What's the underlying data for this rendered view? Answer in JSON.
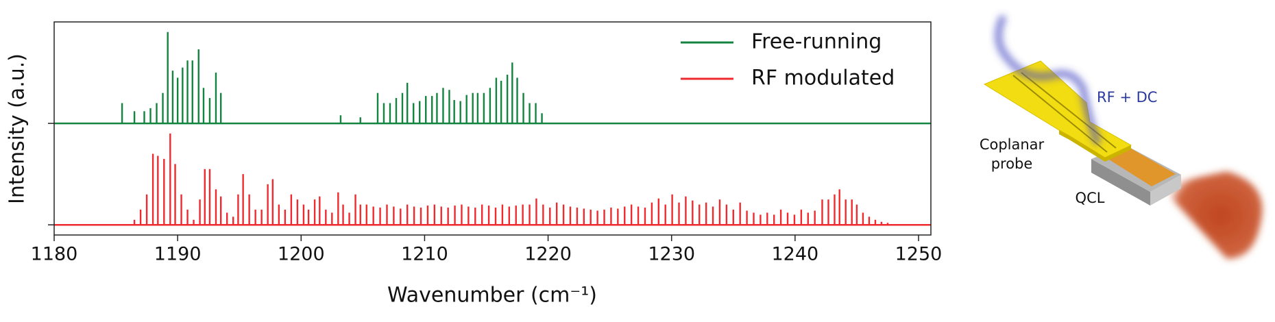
{
  "chart_data": {
    "type": "stem",
    "y_label": "Intensity (a.u.)",
    "x_label": "Wavenumber (cm⁻¹)",
    "xlim": [
      1180,
      1251
    ],
    "xticks": [
      1180,
      1190,
      1200,
      1210,
      1220,
      1230,
      1240,
      1250
    ],
    "ylim": [
      -0.1,
      2.0
    ],
    "yticks": [
      0,
      1
    ],
    "legend": "upper right",
    "series": [
      {
        "name": "Free-running",
        "color": "#12843f",
        "baseline": 1,
        "x": [
          1185.5,
          1186.5,
          1187.3,
          1187.8,
          1188.3,
          1188.8,
          1189.2,
          1189.6,
          1190.0,
          1190.4,
          1190.8,
          1191.2,
          1191.7,
          1192.1,
          1192.6,
          1193.1,
          1193.5,
          1203.2,
          1204.8,
          1206.2,
          1206.7,
          1207.2,
          1207.7,
          1208.2,
          1208.6,
          1209.1,
          1209.6,
          1210.1,
          1210.6,
          1211.0,
          1211.5,
          1212.0,
          1212.4,
          1212.9,
          1213.4,
          1213.9,
          1214.3,
          1214.8,
          1215.3,
          1215.8,
          1216.2,
          1216.7,
          1217.1,
          1217.5,
          1218.0,
          1218.5,
          1219.0,
          1219.5
        ],
        "values": [
          1.2,
          1.12,
          1.12,
          1.15,
          1.2,
          1.3,
          1.9,
          1.52,
          1.45,
          1.55,
          1.62,
          1.62,
          1.73,
          1.35,
          1.25,
          1.5,
          1.3,
          1.08,
          1.06,
          1.3,
          1.2,
          1.2,
          1.25,
          1.3,
          1.4,
          1.2,
          1.22,
          1.27,
          1.27,
          1.3,
          1.35,
          1.33,
          1.23,
          1.22,
          1.28,
          1.3,
          1.3,
          1.3,
          1.35,
          1.45,
          1.42,
          1.48,
          1.6,
          1.45,
          1.3,
          1.2,
          1.2,
          1.1
        ]
      },
      {
        "name": "RF modulated",
        "color": "#ee2a2e",
        "baseline": 0,
        "x": [
          1186.5,
          1187.0,
          1187.5,
          1188.0,
          1188.4,
          1188.9,
          1189.4,
          1189.8,
          1190.3,
          1190.8,
          1191.3,
          1191.8,
          1192.2,
          1192.6,
          1193.1,
          1193.5,
          1194.0,
          1194.5,
          1194.9,
          1195.3,
          1195.8,
          1196.3,
          1196.8,
          1197.3,
          1197.7,
          1198.2,
          1198.7,
          1199.2,
          1199.7,
          1200.2,
          1200.6,
          1201.1,
          1201.5,
          1202.0,
          1202.5,
          1203.0,
          1203.4,
          1203.9,
          1204.4,
          1204.8,
          1205.3,
          1205.85,
          1206.4,
          1206.95,
          1207.5,
          1208.05,
          1208.6,
          1209.15,
          1209.7,
          1210.25,
          1210.8,
          1211.35,
          1211.9,
          1212.45,
          1213.0,
          1213.55,
          1214.1,
          1214.65,
          1215.2,
          1215.75,
          1216.3,
          1216.85,
          1217.4,
          1217.95,
          1218.5,
          1219.05,
          1219.6,
          1220.15,
          1220.7,
          1221.25,
          1221.8,
          1222.35,
          1222.9,
          1223.45,
          1224.0,
          1224.55,
          1225.1,
          1225.65,
          1226.2,
          1226.75,
          1227.3,
          1227.85,
          1228.4,
          1228.95,
          1229.5,
          1230.05,
          1230.6,
          1231.15,
          1231.7,
          1232.25,
          1232.8,
          1233.35,
          1233.9,
          1234.45,
          1235.0,
          1235.55,
          1236.1,
          1236.65,
          1237.2,
          1237.75,
          1238.3,
          1238.85,
          1239.4,
          1239.95,
          1240.5,
          1241.05,
          1241.6,
          1242.2,
          1242.7,
          1243.2,
          1243.6,
          1244.1,
          1244.6,
          1245.0,
          1245.5,
          1246.0,
          1246.5,
          1247.0,
          1247.5
        ],
        "values": [
          0.05,
          0.15,
          0.3,
          0.7,
          0.68,
          0.65,
          0.9,
          0.6,
          0.3,
          0.15,
          0.05,
          0.25,
          0.55,
          0.55,
          0.35,
          0.28,
          0.12,
          0.08,
          0.3,
          0.5,
          0.3,
          0.15,
          0.15,
          0.4,
          0.45,
          0.2,
          0.15,
          0.3,
          0.25,
          0.2,
          0.15,
          0.25,
          0.28,
          0.15,
          0.12,
          0.32,
          0.2,
          0.12,
          0.3,
          0.2,
          0.2,
          0.18,
          0.17,
          0.2,
          0.18,
          0.16,
          0.2,
          0.18,
          0.17,
          0.19,
          0.2,
          0.18,
          0.17,
          0.19,
          0.2,
          0.18,
          0.17,
          0.2,
          0.19,
          0.17,
          0.2,
          0.18,
          0.19,
          0.2,
          0.2,
          0.26,
          0.2,
          0.17,
          0.22,
          0.2,
          0.18,
          0.17,
          0.16,
          0.15,
          0.14,
          0.15,
          0.17,
          0.16,
          0.18,
          0.2,
          0.18,
          0.17,
          0.22,
          0.26,
          0.2,
          0.3,
          0.22,
          0.28,
          0.24,
          0.2,
          0.22,
          0.18,
          0.25,
          0.2,
          0.15,
          0.22,
          0.14,
          0.12,
          0.1,
          0.12,
          0.1,
          0.15,
          0.12,
          0.1,
          0.15,
          0.12,
          0.14,
          0.25,
          0.25,
          0.3,
          0.35,
          0.25,
          0.25,
          0.2,
          0.12,
          0.08,
          0.05,
          0.03,
          0.02
        ]
      }
    ]
  },
  "diagram": {
    "labels": {
      "signal": "RF + DC",
      "probe_line1": "Coplanar",
      "probe_line2": "probe",
      "laser": "QCL"
    }
  }
}
